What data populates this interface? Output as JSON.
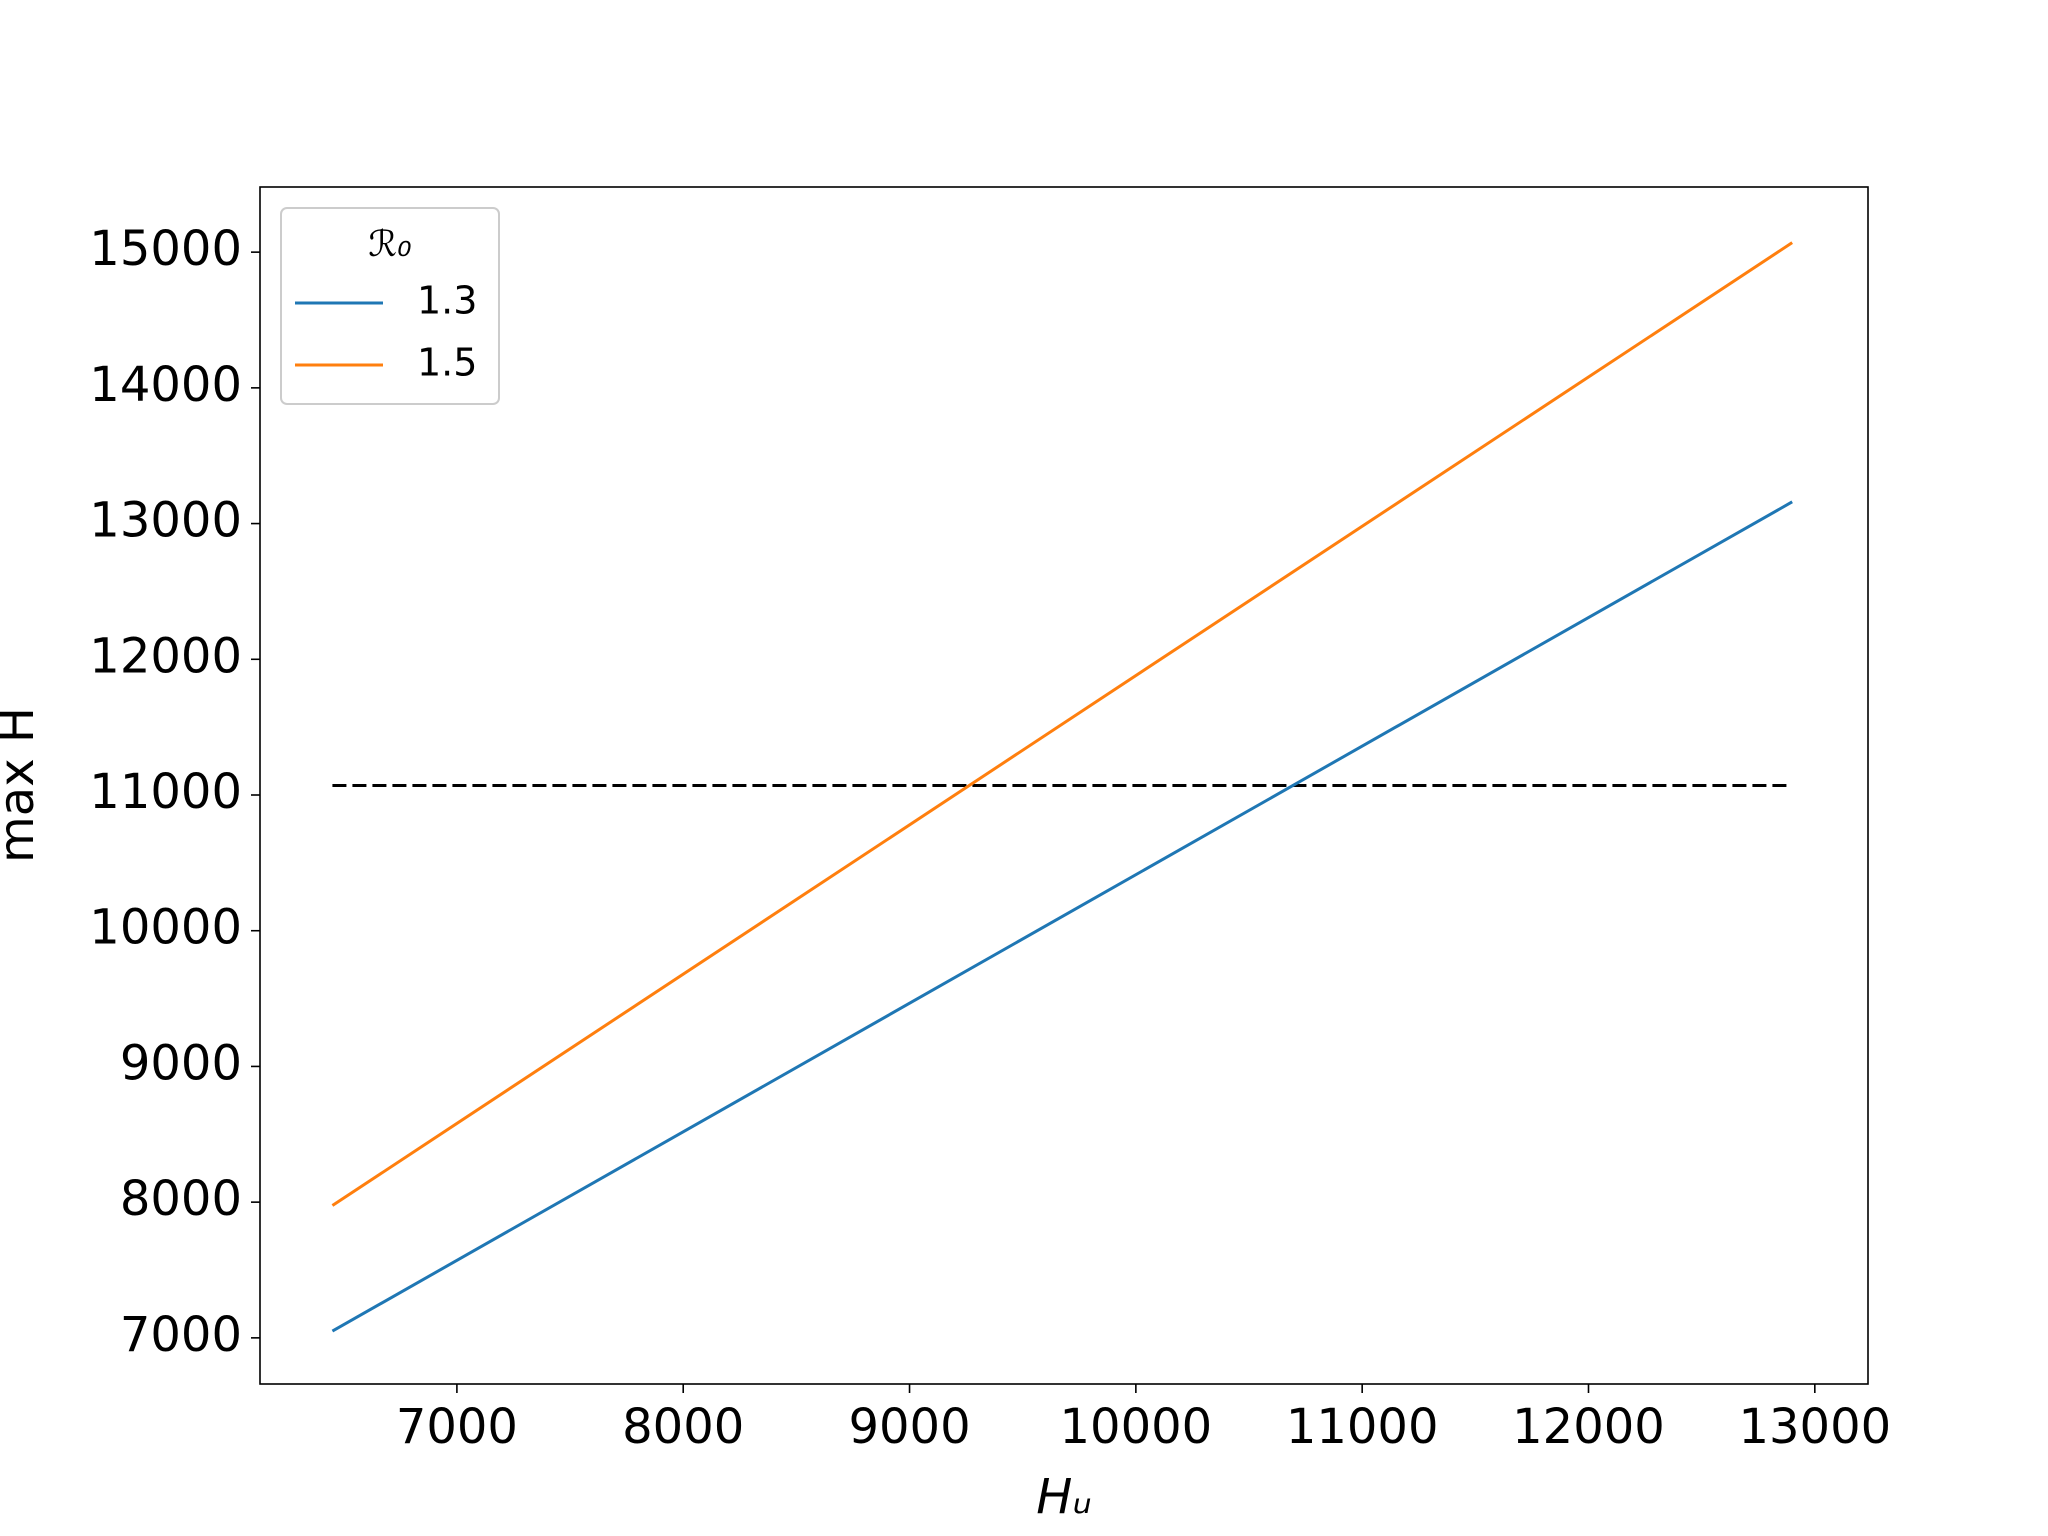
{
  "chart_data": {
    "type": "line",
    "x_label": "Hᵤ",
    "y_label": "max H",
    "legend_title": "ℛ₀",
    "legend": "upper left",
    "series": [
      {
        "name": "1.3",
        "color": "#1f77b4",
        "x": [
          6450,
          12900
        ],
        "values": [
          7050,
          13160
        ]
      },
      {
        "name": "1.5",
        "color": "#ff7f0e",
        "x": [
          6450,
          12900
        ],
        "values": [
          7975,
          15070
        ]
      }
    ],
    "hlines": [
      {
        "y": 11070,
        "xmin": 6450,
        "xmax": 12900,
        "color": "#000000",
        "style": "dashed"
      }
    ],
    "xlim": [
      6130,
      13235
    ],
    "xticks": [
      7000,
      8000,
      9000,
      10000,
      11000,
      12000,
      13000
    ],
    "ylim": [
      6660,
      15480
    ],
    "yticks": [
      7000,
      8000,
      9000,
      10000,
      11000,
      12000,
      13000,
      14000,
      15000
    ],
    "grid": false
  }
}
